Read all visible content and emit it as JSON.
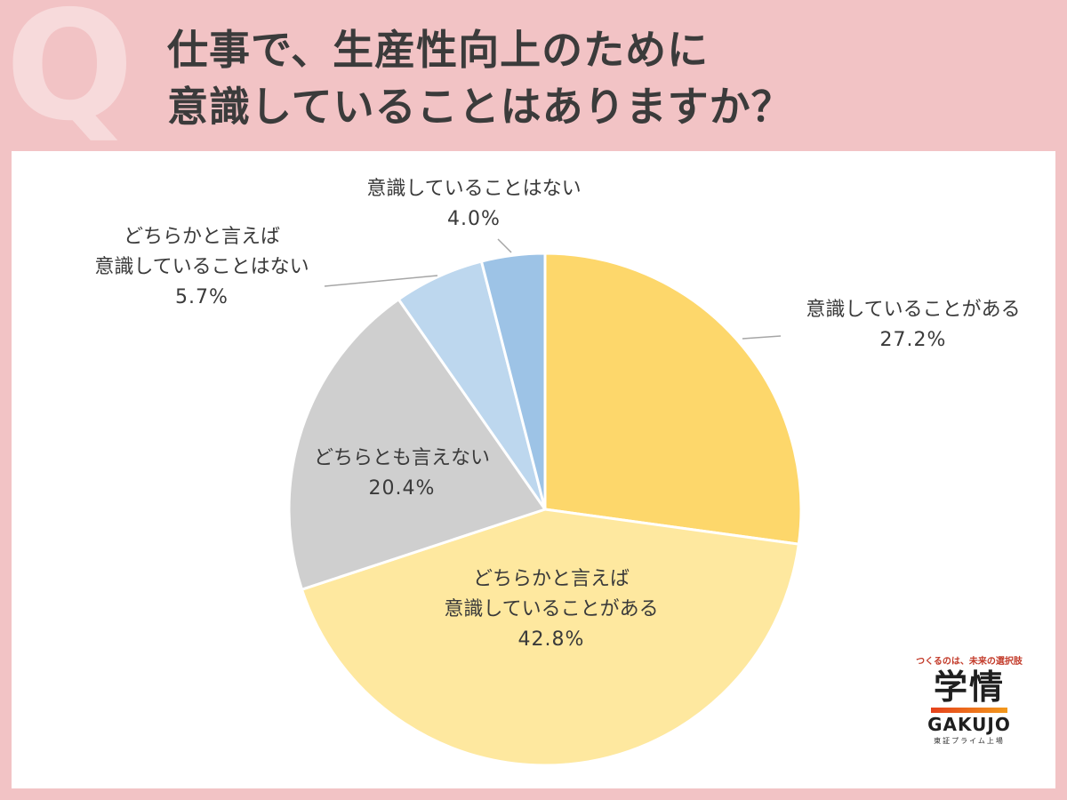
{
  "question": {
    "mark": "Q",
    "line1": "仕事で、生産性向上のために",
    "line2": "意識していることはありますか？"
  },
  "chart_data": {
    "type": "pie",
    "start_angle_deg": 0,
    "direction": "clockwise",
    "slices": [
      {
        "label_lines": [
          "意識していることがある"
        ],
        "value": 27.2,
        "pct_label": "27.2%",
        "color": "#fdd76b"
      },
      {
        "label_lines": [
          "どちらかと言えば",
          "意識していることがある"
        ],
        "value": 42.8,
        "pct_label": "42.8%",
        "color": "#fee89f"
      },
      {
        "label_lines": [
          "どちらとも言えない"
        ],
        "value": 20.4,
        "pct_label": "20.4%",
        "color": "#cfcfcf"
      },
      {
        "label_lines": [
          "どちらかと言えば",
          "意識していることはない"
        ],
        "value": 5.7,
        "pct_label": "5.7%",
        "color": "#bdd7ee"
      },
      {
        "label_lines": [
          "意識していることはない"
        ],
        "value": 4.0,
        "pct_label": "4.0%",
        "color": "#9dc3e6"
      }
    ]
  },
  "brand": {
    "tagline": "つくるのは、未来の選択肢",
    "name_jp": "学情",
    "name_en": "GAKUJO",
    "listing": "東証プライム上場",
    "accent_colors": [
      "#e5411c",
      "#f39a1c"
    ]
  }
}
